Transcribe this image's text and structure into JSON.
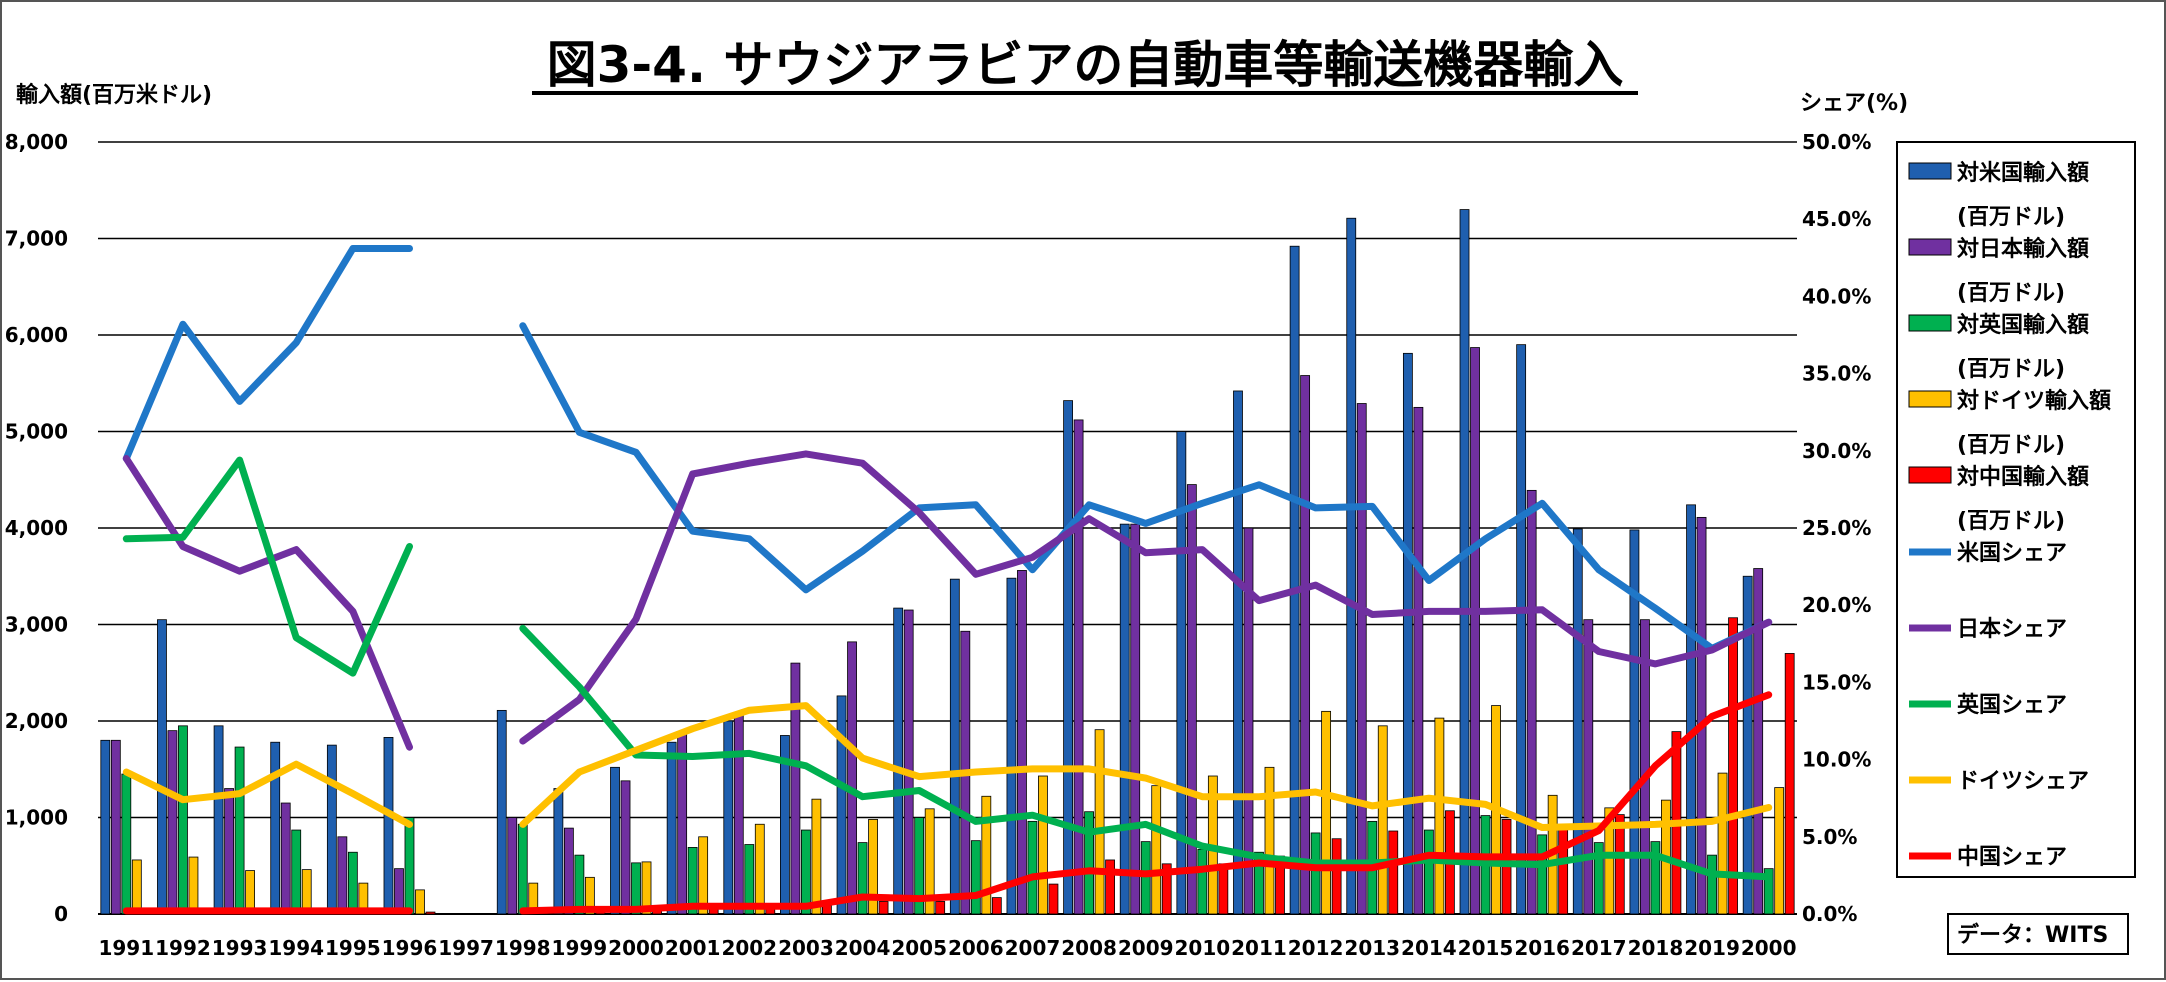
{
  "chart_data": {
    "type": "bar+line",
    "title": "図3-4. サウジアラビアの自動車等輸送機器輸入",
    "ylabel_left": "輸入額(百万米ドル)",
    "ylabel_right": "シェア(%)",
    "source_note": "データ：WITS",
    "ylim_left": [
      0,
      8000
    ],
    "ylim_right": [
      0,
      50
    ],
    "y_ticks_left": [
      "0",
      "1,000",
      "2,000",
      "3,000",
      "4,000",
      "5,000",
      "6,000",
      "7,000",
      "8,000"
    ],
    "y_ticks_right": [
      "0.0%",
      "5.0%",
      "10.0%",
      "15.0%",
      "20.0%",
      "25.0%",
      "30.0%",
      "35.0%",
      "40.0%",
      "45.0%",
      "50.0%"
    ],
    "categories": [
      "1991",
      "1992",
      "1993",
      "1994",
      "1995",
      "1996",
      "1997",
      "1998",
      "1999",
      "2000",
      "2001",
      "2002",
      "2003",
      "2004",
      "2005",
      "2006",
      "2007",
      "2008",
      "2009",
      "2010",
      "2011",
      "2012",
      "2013",
      "2014",
      "2015",
      "2016",
      "2017",
      "2018",
      "2019",
      "2000"
    ],
    "bar_series": [
      {
        "name": "対米国輸入額",
        "unit": "(百万ドル)",
        "color": "#1F5FAF",
        "values": [
          1800,
          3050,
          1950,
          1780,
          1750,
          1830,
          null,
          2110,
          1300,
          1520,
          1780,
          2000,
          1850,
          2260,
          3170,
          3470,
          3480,
          5320,
          4040,
          5000,
          5420,
          6920,
          7210,
          5810,
          7300,
          5900,
          3990,
          3980,
          4240,
          3500
        ]
      },
      {
        "name": "対日本輸入額",
        "unit": "(百万ドル)",
        "color": "#7030A0",
        "values": [
          1800,
          1900,
          1300,
          1150,
          800,
          470,
          null,
          1000,
          890,
          1380,
          1860,
          2060,
          2600,
          2820,
          3150,
          2930,
          3560,
          5120,
          4040,
          4450,
          4000,
          5580,
          5290,
          5250,
          5870,
          4390,
          3050,
          3050,
          4110,
          3580
        ]
      },
      {
        "name": "対英国輸入額",
        "unit": "(百万ドル)",
        "color": "#00B050",
        "values": [
          1450,
          1950,
          1730,
          870,
          640,
          1000,
          null,
          930,
          610,
          530,
          690,
          720,
          870,
          740,
          1000,
          760,
          960,
          1060,
          750,
          670,
          640,
          840,
          960,
          870,
          1020,
          820,
          740,
          750,
          610,
          470
        ]
      },
      {
        "name": "対ドイツ輸入額",
        "unit": "(百万ドル)",
        "color": "#FFC000",
        "values": [
          560,
          590,
          450,
          460,
          320,
          250,
          null,
          320,
          380,
          540,
          800,
          930,
          1190,
          980,
          1090,
          1220,
          1430,
          1910,
          1330,
          1430,
          1520,
          2100,
          1950,
          2030,
          2160,
          1230,
          1100,
          1180,
          1460,
          1310
        ]
      },
      {
        "name": "対中国輸入額",
        "unit": "(百万ドル)",
        "color": "#FF0000",
        "values": [
          20,
          20,
          20,
          20,
          20,
          20,
          null,
          30,
          40,
          50,
          60,
          80,
          90,
          130,
          130,
          170,
          310,
          560,
          520,
          520,
          600,
          780,
          860,
          1070,
          980,
          900,
          1030,
          1890,
          3070,
          2700
        ]
      }
    ],
    "line_series": [
      {
        "name": "米国シェア",
        "color": "#1F77C8",
        "values": [
          29.5,
          38.2,
          33.2,
          37.0,
          43.1,
          43.1,
          null,
          38.1,
          31.2,
          29.9,
          24.8,
          24.3,
          21.0,
          23.5,
          26.3,
          26.5,
          22.3,
          26.5,
          25.3,
          26.6,
          27.8,
          26.3,
          26.4,
          21.6,
          24.3,
          26.6,
          22.3,
          19.8,
          17.2,
          18.9
        ]
      },
      {
        "name": "日本シェア",
        "color": "#7030A0",
        "values": [
          29.5,
          23.8,
          22.2,
          23.6,
          19.6,
          10.8,
          null,
          11.2,
          13.9,
          19.1,
          28.5,
          29.2,
          29.8,
          29.2,
          26.0,
          22.0,
          23.1,
          25.6,
          23.4,
          23.6,
          20.3,
          21.3,
          19.4,
          19.6,
          19.6,
          19.7,
          17.0,
          16.2,
          17.1,
          18.9
        ]
      },
      {
        "name": "英国シェア",
        "color": "#00B050",
        "values": [
          24.3,
          24.4,
          29.4,
          17.9,
          15.6,
          23.8,
          null,
          18.5,
          14.7,
          10.3,
          10.2,
          10.4,
          9.6,
          7.6,
          8.0,
          6.0,
          6.4,
          5.3,
          5.8,
          4.4,
          3.7,
          3.3,
          3.3,
          3.5,
          3.3,
          3.2,
          3.8,
          3.8,
          2.6,
          2.4
        ]
      },
      {
        "name": "ドイツシェア",
        "color": "#FFC000",
        "values": [
          9.2,
          7.4,
          7.8,
          9.7,
          7.8,
          5.8,
          null,
          5.8,
          9.2,
          10.6,
          12.0,
          13.2,
          13.5,
          10.1,
          8.9,
          9.2,
          9.4,
          9.4,
          8.8,
          7.6,
          7.6,
          7.9,
          7.0,
          7.5,
          7.1,
          5.6,
          5.7,
          5.8,
          6.0,
          6.9
        ]
      },
      {
        "name": "中国シェア",
        "color": "#FF0000",
        "values": [
          0.2,
          0.2,
          0.2,
          0.2,
          0.2,
          0.2,
          null,
          0.2,
          0.3,
          0.3,
          0.5,
          0.5,
          0.5,
          1.1,
          1.0,
          1.2,
          2.4,
          2.8,
          2.6,
          2.9,
          3.3,
          3.0,
          3.0,
          3.8,
          3.7,
          3.7,
          5.4,
          9.6,
          12.8,
          14.2
        ]
      }
    ],
    "legend_position": "right",
    "grid": true
  }
}
